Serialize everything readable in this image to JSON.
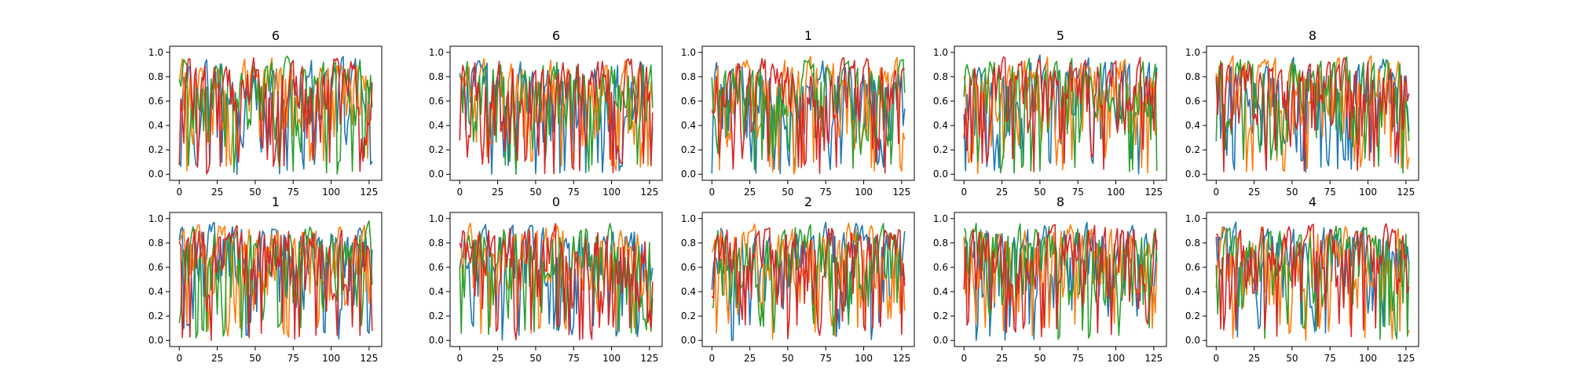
{
  "figure": {
    "panel_titles": [
      "6",
      "6",
      "1",
      "5",
      "8",
      "1",
      "0",
      "2",
      "8",
      "4"
    ]
  },
  "chart_data": {
    "type": "line",
    "layout": "2x5 grid of small multiples",
    "x_range": [
      0,
      127
    ],
    "ylim": [
      0,
      1
    ],
    "x_ticks": [
      0,
      25,
      50,
      75,
      100,
      125
    ],
    "y_ticks": [
      0.0,
      0.2,
      0.4,
      0.6,
      0.8,
      1.0
    ],
    "x_tick_labels": [
      "0",
      "25",
      "50",
      "75",
      "100",
      "125"
    ],
    "y_tick_labels": [
      "0.0",
      "0.2",
      "0.4",
      "0.6",
      "0.8",
      "1.0"
    ],
    "grid": false,
    "legend": "none",
    "series_colors": [
      "#1f77b4",
      "#ff7f0e",
      "#2ca02c",
      "#d62728"
    ],
    "panels": [
      {
        "title": "6",
        "series_count": 4,
        "seed": 11
      },
      {
        "title": "6",
        "series_count": 4,
        "seed": 23
      },
      {
        "title": "1",
        "series_count": 4,
        "seed": 37
      },
      {
        "title": "5",
        "series_count": 4,
        "seed": 41
      },
      {
        "title": "8",
        "series_count": 4,
        "seed": 53
      },
      {
        "title": "1",
        "series_count": 4,
        "seed": 67
      },
      {
        "title": "0",
        "series_count": 4,
        "seed": 71
      },
      {
        "title": "2",
        "series_count": 4,
        "seed": 83
      },
      {
        "title": "8",
        "series_count": 4,
        "seed": 97
      },
      {
        "title": "4",
        "series_count": 4,
        "seed": 101
      }
    ]
  }
}
